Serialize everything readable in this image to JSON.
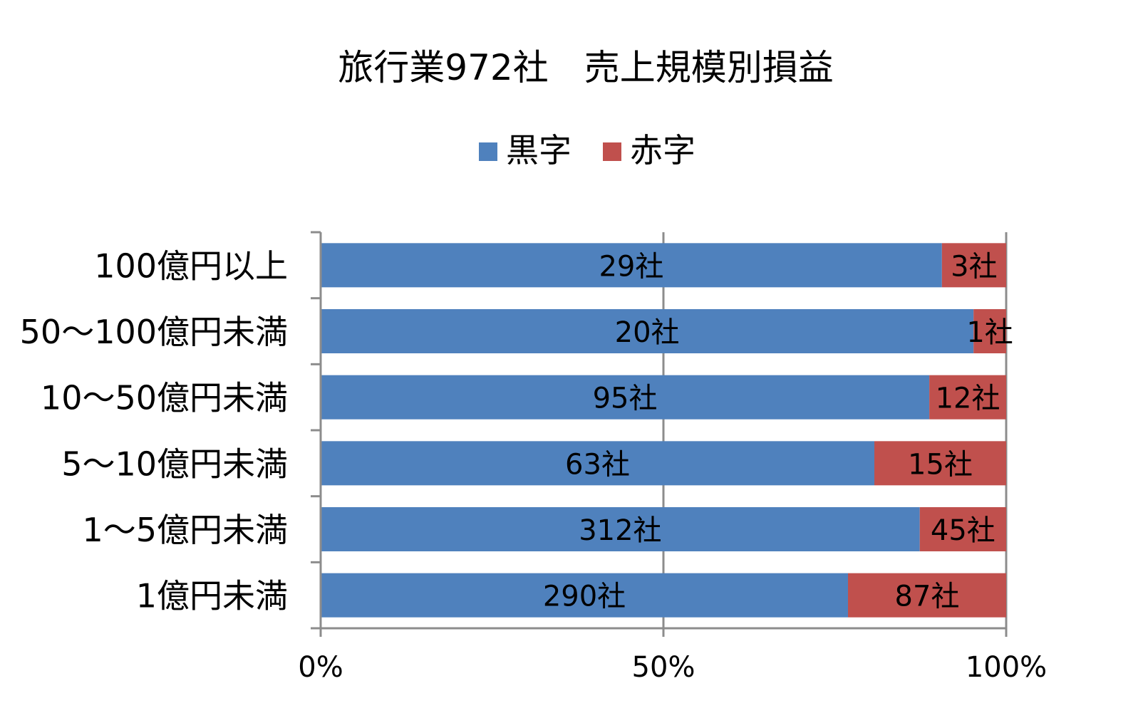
{
  "chart_data": {
    "type": "bar",
    "orientation": "horizontal",
    "stacked": "percent",
    "title": "旅行業972社　売上規模別損益",
    "categories": [
      "100億円以上",
      "50〜100億円未満",
      "10〜50億円未満",
      "5〜10億円未満",
      "1〜5億円未満",
      "1億円未満"
    ],
    "series": [
      {
        "name": "黒字",
        "color": "#4F81BD",
        "values": [
          29,
          20,
          95,
          63,
          312,
          290
        ],
        "labels": [
          "29社",
          "20社",
          "95社",
          "63社",
          "312社",
          "290社"
        ]
      },
      {
        "name": "赤字",
        "color": "#C0504D",
        "values": [
          3,
          1,
          12,
          15,
          45,
          87
        ],
        "labels": [
          "3社",
          "1社",
          "12社",
          "15社",
          "45社",
          "87社"
        ]
      }
    ],
    "x_ticks": [
      "0%",
      "50%",
      "100%"
    ],
    "xlim": [
      0,
      100
    ],
    "grid": true,
    "legend": "top-center"
  }
}
